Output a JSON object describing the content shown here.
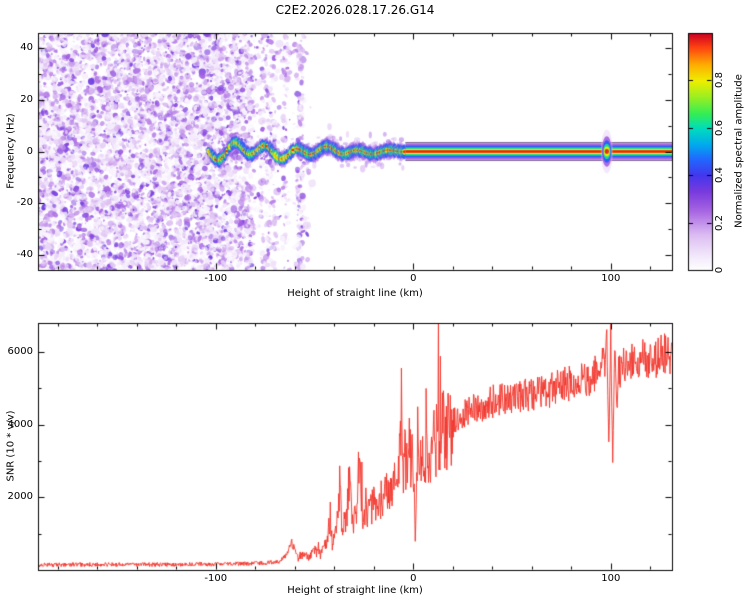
{
  "title": "C2E2.2026.028.17.26.G14",
  "chart_data": [
    {
      "type": "heatmap",
      "name": "doppler-spectrogram",
      "xlabel": "Height of straight line (km)",
      "ylabel": "Frequency (Hz)",
      "xlim": [
        -190,
        131
      ],
      "ylim": [
        -46,
        46
      ],
      "xticks": [
        -100,
        0,
        100
      ],
      "xticklabels": [
        "-100",
        "0",
        "100"
      ],
      "yticks": [
        40,
        20,
        0,
        -20,
        -40
      ],
      "yticklabels": [
        "40",
        "20",
        "0",
        "-20",
        "-40"
      ],
      "grid": false,
      "colorbar": {
        "label": "Normalized spectral amplitude",
        "tick_values": [
          0,
          0.2,
          0.4,
          0.6,
          0.8
        ],
        "tick_labels": [
          "0",
          "0.2",
          "0.4",
          "0.6",
          "0.8"
        ],
        "range": [
          0,
          1
        ],
        "colormap": [
          {
            "t": 0.0,
            "c": "#ffffff"
          },
          {
            "t": 0.06,
            "c": "#f3e9fb"
          },
          {
            "t": 0.15,
            "c": "#dcbcf2"
          },
          {
            "t": 0.25,
            "c": "#a866e2"
          },
          {
            "t": 0.33,
            "c": "#7a3bdd"
          },
          {
            "t": 0.4,
            "c": "#4436ee"
          },
          {
            "t": 0.47,
            "c": "#2268ff"
          },
          {
            "t": 0.53,
            "c": "#00aaee"
          },
          {
            "t": 0.6,
            "c": "#00ddbb"
          },
          {
            "t": 0.66,
            "c": "#33ee55"
          },
          {
            "t": 0.73,
            "c": "#99ee22"
          },
          {
            "t": 0.8,
            "c": "#eeee00"
          },
          {
            "t": 0.87,
            "c": "#ffaa00"
          },
          {
            "t": 0.94,
            "c": "#ff4411"
          },
          {
            "t": 1.0,
            "c": "#cc0022"
          }
        ]
      },
      "noise_field": {
        "description": "diffuse purple speckle noise filling left part of panel, thinning in vertical bands toward -50 km",
        "dense_until_km": -82,
        "speckle_until_km": -50,
        "bright_column_km": -57
      },
      "signal_trace": {
        "description": "narrow rainbow-colored signal ridge near 0 Hz: wiggly and broken from -104 km, straight flat stripe from -4 km to right edge, small bulge near 98 km",
        "center_freq_hz": 0,
        "onset_x_km": -104,
        "straight_from_x_km": -4,
        "blob_x_km": 98,
        "wiggle_max_hz": 2.6,
        "band_half_hz": [
          3.1,
          2.3,
          1.6,
          1.0,
          0.5
        ],
        "band_color_t": [
          0.25,
          0.45,
          0.62,
          0.8,
          0.97
        ]
      }
    },
    {
      "type": "line",
      "name": "snr-profile",
      "xlabel": "Height of straight line (km)",
      "ylabel": "SNR (10 * v/v)",
      "xlim": [
        -190,
        131
      ],
      "ylim": [
        0,
        6800
      ],
      "xticks": [
        -100,
        0,
        100
      ],
      "xticklabels": [
        "-100",
        "0",
        "100"
      ],
      "yticks": [
        2000,
        4000,
        6000
      ],
      "yticklabels": [
        "2000",
        "4000",
        "6000"
      ],
      "grid": false,
      "color": "#f03228",
      "envelope": [
        [
          -190,
          140
        ],
        [
          -160,
          150
        ],
        [
          -130,
          150
        ],
        [
          -110,
          155
        ],
        [
          -95,
          165
        ],
        [
          -85,
          175
        ],
        [
          -75,
          190
        ],
        [
          -68,
          230
        ],
        [
          -64,
          420
        ],
        [
          -62,
          780
        ],
        [
          -60,
          480
        ],
        [
          -58,
          300
        ],
        [
          -56,
          420
        ],
        [
          -53,
          340
        ],
        [
          -50,
          520
        ],
        [
          -47,
          430
        ],
        [
          -44,
          700
        ],
        [
          -42,
          1450
        ],
        [
          -41,
          700
        ],
        [
          -39,
          950
        ],
        [
          -37,
          2600
        ],
        [
          -36,
          1100
        ],
        [
          -34,
          1350
        ],
        [
          -32,
          2850
        ],
        [
          -31,
          1300
        ],
        [
          -29,
          1600
        ],
        [
          -27,
          3050
        ],
        [
          -26,
          1450
        ],
        [
          -24,
          1750
        ],
        [
          -22,
          1600
        ],
        [
          -20,
          1850
        ],
        [
          -18,
          1700
        ],
        [
          -16,
          2000
        ],
        [
          -14,
          2150
        ],
        [
          -12,
          2300
        ],
        [
          -10,
          2450
        ],
        [
          -8,
          2100
        ],
        [
          -7,
          3300
        ],
        [
          -6,
          4650
        ],
        [
          -5,
          2700
        ],
        [
          -4,
          3100
        ],
        [
          -3,
          2600
        ],
        [
          -2,
          3250
        ],
        [
          -1,
          2900
        ],
        [
          0,
          3050
        ],
        [
          1,
          700
        ],
        [
          2,
          2950
        ],
        [
          4,
          3150
        ],
        [
          6,
          3000
        ],
        [
          8,
          3250
        ],
        [
          10,
          3450
        ],
        [
          13,
          3650
        ],
        [
          16,
          3850
        ],
        [
          20,
          4050
        ],
        [
          24,
          4200
        ],
        [
          28,
          4350
        ],
        [
          32,
          4450
        ],
        [
          36,
          4550
        ],
        [
          40,
          4650
        ],
        [
          45,
          4700
        ],
        [
          50,
          4750
        ],
        [
          55,
          4800
        ],
        [
          60,
          4850
        ],
        [
          65,
          4900
        ],
        [
          70,
          4950
        ],
        [
          75,
          5050
        ],
        [
          80,
          5150
        ],
        [
          85,
          5250
        ],
        [
          90,
          5350
        ],
        [
          93,
          5450
        ],
        [
          95,
          5550
        ],
        [
          96,
          6100
        ],
        [
          97,
          5600
        ],
        [
          98,
          6700
        ],
        [
          99,
          3400
        ],
        [
          100,
          6500
        ],
        [
          101,
          2900
        ],
        [
          102,
          6200
        ],
        [
          103,
          4400
        ],
        [
          104,
          5500
        ],
        [
          106,
          5650
        ],
        [
          108,
          5600
        ],
        [
          110,
          5700
        ],
        [
          113,
          5750
        ],
        [
          116,
          5800
        ],
        [
          120,
          5850
        ],
        [
          125,
          5900
        ],
        [
          131,
          5950
        ]
      ]
    }
  ]
}
